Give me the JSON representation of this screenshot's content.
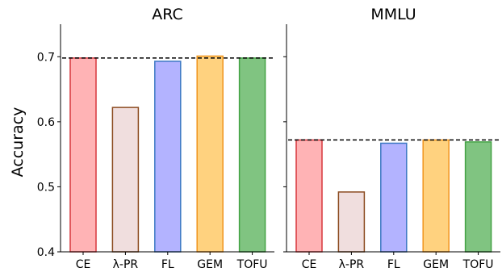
{
  "chart_data": [
    {
      "type": "bar",
      "title": "ARC",
      "ylabel": "Accuracy",
      "ylim": [
        0.4,
        0.75
      ],
      "yticks": [
        "0.4",
        "0.5",
        "0.6",
        "0.7"
      ],
      "categories": [
        "CE",
        "λ-PR",
        "FL",
        "GEM",
        "TOFU"
      ],
      "values": [
        0.698,
        0.622,
        0.693,
        0.701,
        0.698
      ],
      "reference_line": 0.698
    },
    {
      "type": "bar",
      "title": "MMLU",
      "ylim": [
        0.4,
        0.75
      ],
      "categories": [
        "CE",
        "λ-PR",
        "FL",
        "GEM",
        "TOFU"
      ],
      "values": [
        0.572,
        0.492,
        0.567,
        0.572,
        0.569
      ],
      "reference_line": 0.572
    }
  ],
  "bar_styles": [
    {
      "fill": "#ffb3b5",
      "stroke": "#d7363d"
    },
    {
      "fill": "#f0dede",
      "stroke": "#8b4a1f"
    },
    {
      "fill": "#b3b3ff",
      "stroke": "#3c78c3"
    },
    {
      "fill": "#ffd27f",
      "stroke": "#f0951e"
    },
    {
      "fill": "#80c481",
      "stroke": "#43a244"
    }
  ]
}
